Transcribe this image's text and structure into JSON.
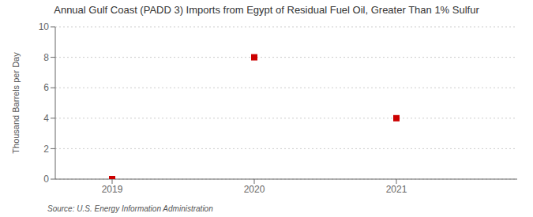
{
  "chart_data": {
    "type": "scatter",
    "title": "Annual Gulf Coast (PADD 3) Imports from Egypt of Residual Fuel Oil, Greater Than 1% Sulfur",
    "ylabel": "Thousand Barrels per Day",
    "annotations": [
      "Source: U.S. Energy Information Administration"
    ],
    "x": [
      2019,
      2020,
      2021
    ],
    "values": [
      0,
      8,
      4
    ],
    "color": "#cc0000",
    "marker": "square",
    "xlim": [
      2018.6,
      2021.85
    ],
    "xticks": [
      2019,
      2020,
      2021
    ],
    "ylim": [
      0,
      10
    ],
    "yticks": [
      0,
      2,
      4,
      6,
      8,
      10
    ],
    "grid": true
  }
}
